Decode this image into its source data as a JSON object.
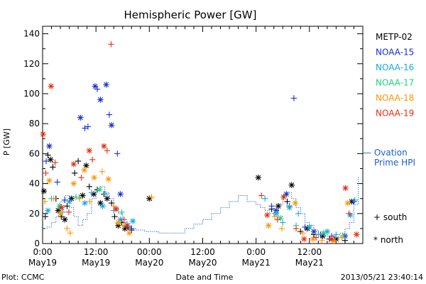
{
  "chart_data": {
    "type": "scatter",
    "title": "Hemispheric Power [GW]",
    "ylabel": "P [GW]",
    "xlabel": "Date and Time",
    "x_unit": "hours since 2013-05-19 00:00 UT",
    "xlim": [
      0,
      72
    ],
    "ylim": [
      0,
      145
    ],
    "y_ticks": [
      0,
      20,
      40,
      60,
      80,
      100,
      120,
      140
    ],
    "x_ticks": [
      {
        "x": 0,
        "time": "0:00",
        "date": "May19"
      },
      {
        "x": 12,
        "time": "12:00",
        "date": "May19"
      },
      {
        "x": 24,
        "time": "00:00",
        "date": "May20"
      },
      {
        "x": 36,
        "time": "12:00",
        "date": "May20"
      },
      {
        "x": 48,
        "time": "0:00",
        "date": "May21"
      },
      {
        "x": 60,
        "time": "12:00",
        "date": "May21"
      }
    ],
    "footer_left": "Plot: CCMC",
    "footer_right": "2013/05/21 23:40:14",
    "marker_legend": [
      {
        "symbol": "+",
        "label": "south"
      },
      {
        "symbol": "*",
        "label": "north"
      }
    ],
    "ovation": {
      "label_line1": "— Ovation",
      "label_line2": "Prime HPI",
      "color": "#1a5fc8",
      "x": [
        0,
        1,
        2,
        3,
        4,
        5,
        6,
        7,
        8,
        9,
        10,
        11,
        12,
        13,
        14,
        15,
        16,
        17,
        18,
        19,
        20,
        21,
        22,
        23,
        24,
        26,
        28,
        30,
        32,
        34,
        36,
        38,
        40,
        42,
        44,
        46,
        48,
        49,
        50,
        51,
        52,
        53,
        54,
        55,
        56,
        57,
        58,
        59,
        60,
        61,
        62,
        63,
        64,
        65,
        66,
        67,
        68,
        69,
        70,
        71
      ],
      "y": [
        10,
        11,
        14,
        18,
        28,
        32,
        24,
        18,
        12,
        16,
        20,
        30,
        36,
        38,
        34,
        30,
        24,
        20,
        14,
        12,
        10,
        9,
        9,
        8,
        8,
        7,
        7,
        7,
        10,
        13,
        16,
        20,
        24,
        28,
        32,
        28,
        26,
        24,
        22,
        20,
        18,
        26,
        32,
        34,
        30,
        24,
        20,
        14,
        12,
        9,
        7,
        6,
        5,
        5,
        6,
        7,
        10,
        14,
        26,
        45
      ]
    },
    "series": [
      {
        "name": "METP-02",
        "color": "#000000",
        "points": [
          [
            0.3,
            35,
            "n"
          ],
          [
            0.6,
            18,
            "s"
          ],
          [
            1.2,
            59,
            "s"
          ],
          [
            1.8,
            56,
            "n"
          ],
          [
            2.3,
            51,
            "s"
          ],
          [
            3,
            30,
            "s"
          ],
          [
            3.5,
            22,
            "n"
          ],
          [
            4.2,
            18,
            "s"
          ],
          [
            5,
            16,
            "n"
          ],
          [
            5.5,
            25,
            "s"
          ],
          [
            6.5,
            30,
            "n"
          ],
          [
            7.2,
            47,
            "s"
          ],
          [
            8,
            55,
            "s"
          ],
          [
            9,
            32,
            "n"
          ],
          [
            9.8,
            52,
            "n"
          ],
          [
            10.5,
            38,
            "s"
          ],
          [
            11.5,
            33,
            "n"
          ],
          [
            12.3,
            36,
            "s"
          ],
          [
            13,
            27,
            "n"
          ],
          [
            13.8,
            33,
            "s"
          ],
          [
            14.5,
            30,
            "n"
          ],
          [
            15.5,
            27,
            "s"
          ],
          [
            16.2,
            18,
            "s"
          ],
          [
            17,
            12,
            "n"
          ],
          [
            17.8,
            14,
            "s"
          ],
          [
            18.5,
            10,
            "n"
          ],
          [
            19.2,
            11,
            "s"
          ],
          [
            20,
            9,
            "s"
          ],
          [
            24,
            30,
            "n"
          ],
          [
            48.5,
            44,
            "n"
          ],
          [
            51.5,
            23,
            "s"
          ],
          [
            53,
            25,
            "n"
          ],
          [
            55,
            28,
            "s"
          ],
          [
            56,
            39,
            "n"
          ],
          [
            58,
            8,
            "s"
          ],
          [
            59.5,
            10,
            "n"
          ],
          [
            61,
            6,
            "s"
          ],
          [
            63,
            5,
            "n"
          ],
          [
            64.5,
            3,
            "s"
          ],
          [
            66,
            3,
            "n"
          ],
          [
            68,
            2,
            "s"
          ],
          [
            69.5,
            28,
            "n"
          ]
        ]
      },
      {
        "name": "NOAA-15",
        "color": "#1530d0",
        "points": [
          [
            0.8,
            55,
            "s"
          ],
          [
            1.5,
            65,
            "n"
          ],
          [
            3.3,
            41,
            "s"
          ],
          [
            5,
            29,
            "s"
          ],
          [
            8.5,
            84,
            "n"
          ],
          [
            9.5,
            77,
            "s"
          ],
          [
            10.2,
            78,
            "s"
          ],
          [
            11.8,
            105,
            "n"
          ],
          [
            12.3,
            103,
            "s"
          ],
          [
            13,
            96,
            "n"
          ],
          [
            14.3,
            106,
            "n"
          ],
          [
            15,
            86,
            "s"
          ],
          [
            15.5,
            79,
            "n"
          ],
          [
            16.8,
            60,
            "s"
          ],
          [
            17.5,
            33,
            "n"
          ],
          [
            20,
            10,
            "s"
          ],
          [
            51.5,
            25,
            "s"
          ],
          [
            52.5,
            22,
            "n"
          ],
          [
            54.8,
            33,
            "n"
          ],
          [
            55.5,
            25,
            "s"
          ],
          [
            56.5,
            97,
            "s"
          ],
          [
            59,
            11,
            "s"
          ],
          [
            61,
            8,
            "n"
          ],
          [
            62.5,
            6,
            "s"
          ],
          [
            65,
            5,
            "s"
          ],
          [
            68,
            5,
            "n"
          ],
          [
            70,
            28,
            "s"
          ]
        ]
      },
      {
        "name": "NOAA-16",
        "color": "#18a8e0",
        "points": [
          [
            1.2,
            22,
            "n"
          ],
          [
            2,
            30,
            "s"
          ],
          [
            4.5,
            21,
            "s"
          ],
          [
            6,
            28,
            "n"
          ],
          [
            7.5,
            31,
            "s"
          ],
          [
            9.5,
            27,
            "n"
          ],
          [
            11,
            34,
            "s"
          ],
          [
            13.5,
            25,
            "n"
          ],
          [
            14.2,
            33,
            "s"
          ],
          [
            16,
            22,
            "s"
          ],
          [
            17.5,
            16,
            "n"
          ],
          [
            19,
            13,
            "s"
          ],
          [
            20.3,
            15,
            "n"
          ],
          [
            50,
            30,
            "s"
          ],
          [
            52.5,
            20,
            "n"
          ],
          [
            54,
            14,
            "s"
          ],
          [
            55.5,
            24,
            "n"
          ],
          [
            57.5,
            20,
            "s"
          ],
          [
            60,
            11,
            "n"
          ],
          [
            62,
            6,
            "s"
          ],
          [
            64,
            8,
            "n"
          ],
          [
            66,
            6,
            "s"
          ],
          [
            69.2,
            19,
            "n"
          ],
          [
            70.2,
            29,
            "s"
          ]
        ]
      },
      {
        "name": "NOAA-17",
        "color": "#20d080",
        "points": [
          [
            3.8,
            25,
            "n"
          ],
          [
            8.2,
            31,
            "s"
          ],
          [
            12.8,
            36,
            "n"
          ],
          [
            17.8,
            21,
            "s"
          ],
          [
            53.5,
            17,
            "n"
          ],
          [
            57,
            12,
            "s"
          ],
          [
            63.2,
            7,
            "n"
          ],
          [
            67.5,
            5,
            "s"
          ]
        ]
      },
      {
        "name": "NOAA-18",
        "color": "#ff9500",
        "points": [
          [
            0.5,
            28,
            "s"
          ],
          [
            1.5,
            42,
            "n"
          ],
          [
            2.5,
            30,
            "s"
          ],
          [
            4,
            20,
            "n"
          ],
          [
            5.5,
            10,
            "s"
          ],
          [
            6.2,
            7,
            "s"
          ],
          [
            7,
            40,
            "n"
          ],
          [
            8.3,
            30,
            "s"
          ],
          [
            9.4,
            49,
            "n"
          ],
          [
            10.6,
            28,
            "s"
          ],
          [
            11.6,
            44,
            "n"
          ],
          [
            13.4,
            48,
            "s"
          ],
          [
            14.8,
            43,
            "n"
          ],
          [
            16,
            25,
            "s"
          ],
          [
            17,
            14,
            "n"
          ],
          [
            18.2,
            12,
            "s"
          ],
          [
            19.5,
            7,
            "n"
          ],
          [
            24.5,
            31,
            "s"
          ],
          [
            50.8,
            12,
            "n"
          ],
          [
            52.2,
            18,
            "s"
          ],
          [
            53.8,
            10,
            "s"
          ],
          [
            56.8,
            27,
            "n"
          ],
          [
            58.5,
            7,
            "s"
          ],
          [
            60.8,
            3,
            "n"
          ],
          [
            62.8,
            2,
            "s"
          ],
          [
            65.5,
            2,
            "n"
          ],
          [
            67.2,
            4,
            "s"
          ],
          [
            68.6,
            27,
            "n"
          ]
        ]
      },
      {
        "name": "NOAA-19",
        "color": "#e03010",
        "points": [
          [
            0.1,
            73,
            "n"
          ],
          [
            0.7,
            47,
            "s"
          ],
          [
            1.9,
            105,
            "n"
          ],
          [
            2.8,
            54,
            "s"
          ],
          [
            4.3,
            24,
            "n"
          ],
          [
            5.9,
            21,
            "s"
          ],
          [
            7,
            53,
            "n"
          ],
          [
            8.7,
            44,
            "s"
          ],
          [
            10.5,
            62,
            "n"
          ],
          [
            11.2,
            56,
            "s"
          ],
          [
            13.8,
            65,
            "n"
          ],
          [
            14.5,
            62,
            "s"
          ],
          [
            15.4,
            133,
            "s"
          ],
          [
            16.5,
            23,
            "n"
          ],
          [
            18.3,
            16,
            "s"
          ],
          [
            19,
            12,
            "n"
          ],
          [
            49.2,
            32,
            "s"
          ],
          [
            50.5,
            19,
            "n"
          ],
          [
            52.8,
            16,
            "s"
          ],
          [
            54.2,
            31,
            "n"
          ],
          [
            57,
            10,
            "s"
          ],
          [
            58.8,
            3,
            "n"
          ],
          [
            61.5,
            4,
            "s"
          ],
          [
            65,
            3,
            "n"
          ],
          [
            68.1,
            37,
            "n"
          ],
          [
            68.9,
            20,
            "s"
          ],
          [
            70.6,
            6,
            "n"
          ]
        ]
      }
    ]
  }
}
